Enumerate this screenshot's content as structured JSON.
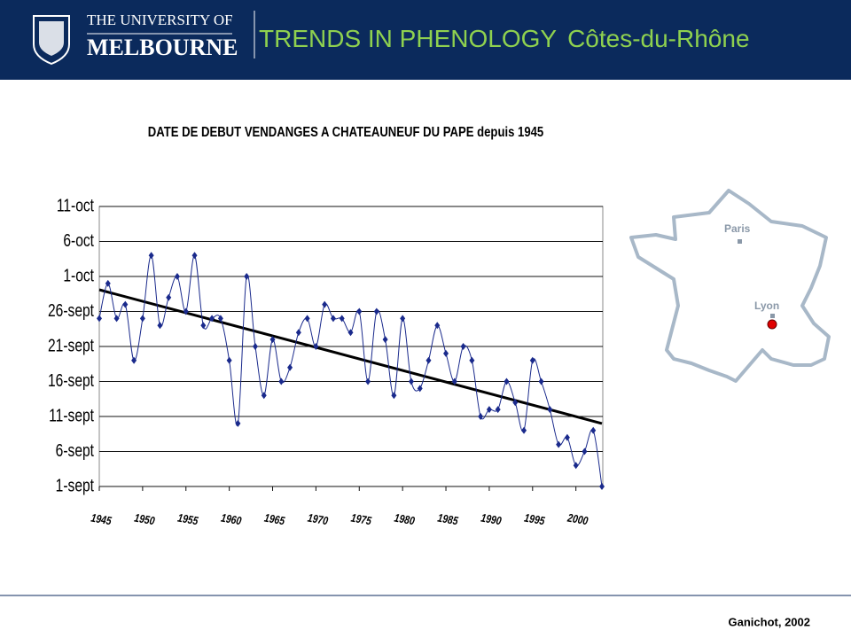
{
  "header": {
    "logo_line1": "THE UNIVERSITY OF",
    "logo_line2": "MELBOURNE",
    "title": "TRENDS IN PHENOLOGY",
    "subtitle": "Côtes-du-Rhône"
  },
  "chart_data": {
    "type": "line",
    "title": "DATE DE DEBUT VENDANGES A CHATEAUNEUF DU PAPE depuis 1945",
    "x": [
      1945,
      1946,
      1947,
      1948,
      1949,
      1950,
      1951,
      1952,
      1953,
      1954,
      1955,
      1956,
      1957,
      1958,
      1959,
      1960,
      1961,
      1962,
      1963,
      1964,
      1965,
      1966,
      1967,
      1968,
      1969,
      1970,
      1971,
      1972,
      1973,
      1974,
      1975,
      1976,
      1977,
      1978,
      1979,
      1980,
      1981,
      1982,
      1983,
      1984,
      1985,
      1986,
      1987,
      1988,
      1989,
      1990,
      1991,
      1992,
      1993,
      1994,
      1995,
      1996,
      1997,
      1998,
      1999,
      2000,
      2001,
      2002,
      2003
    ],
    "series": [
      {
        "color": "#1a2a8c",
        "values": [
          25,
          30,
          25,
          27,
          19,
          25,
          34,
          24,
          28,
          31,
          26,
          34,
          24,
          25,
          25,
          19,
          10,
          31,
          21,
          14,
          22,
          16,
          18,
          23,
          25,
          21,
          27,
          25,
          25,
          23,
          26,
          16,
          26,
          22,
          14,
          25,
          16,
          15,
          19,
          24,
          20,
          16,
          21,
          19,
          11,
          12,
          12,
          16,
          13,
          9,
          19,
          16,
          12,
          7,
          8,
          4,
          6,
          9,
          1
        ]
      }
    ],
    "trendline": {
      "x": [
        1945,
        2003
      ],
      "values": [
        29.1,
        10
      ],
      "color": "#000000"
    },
    "xlim": [
      1945,
      2003
    ],
    "xticks": [
      1945,
      1950,
      1955,
      1960,
      1965,
      1970,
      1975,
      1980,
      1985,
      1990,
      1995,
      2000
    ],
    "ylim": [
      1,
      41
    ],
    "yticks": [
      {
        "value": 1,
        "label": "1-sept"
      },
      {
        "value": 6,
        "label": "6-sept"
      },
      {
        "value": 11,
        "label": "11-sept"
      },
      {
        "value": 16,
        "label": "16-sept"
      },
      {
        "value": 21,
        "label": "21-sept"
      },
      {
        "value": 26,
        "label": "26-sept"
      },
      {
        "value": 31,
        "label": "1-oct"
      },
      {
        "value": 36,
        "label": "6-oct"
      },
      {
        "value": 41,
        "label": "11-oct"
      }
    ],
    "grid": true
  },
  "map": {
    "labels": [
      "Paris",
      "Lyon"
    ]
  },
  "footer": {
    "credit": "Ganichot, 2002"
  }
}
